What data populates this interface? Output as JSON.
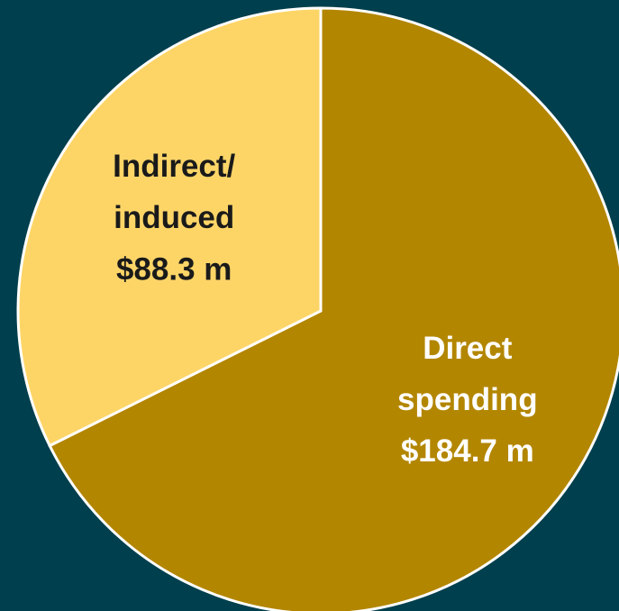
{
  "chart_data": {
    "type": "pie",
    "categories": [
      "Direct spending",
      "Indirect/ induced"
    ],
    "values": [
      184.7,
      88.3
    ],
    "value_labels": [
      "$184.7 m",
      "$88.3 m"
    ],
    "colors": [
      "#b38600",
      "#fdd567"
    ],
    "label_colors": [
      "#ffffff",
      "#1a1a1a"
    ]
  }
}
